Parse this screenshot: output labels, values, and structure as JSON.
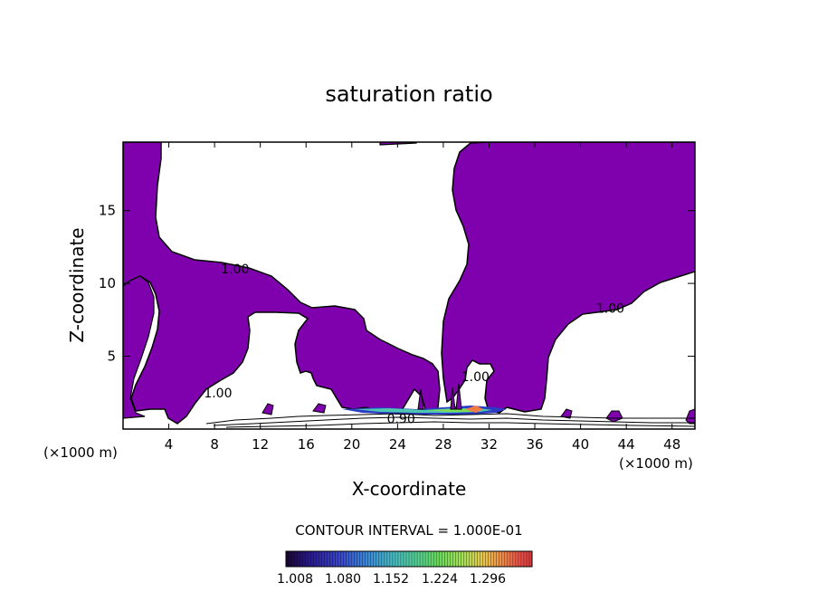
{
  "chart_data": {
    "type": "contour",
    "title": "saturation ratio",
    "xlabel": "X-coordinate",
    "ylabel": "Z-coordinate",
    "x_unit_left": "(×1000 m)",
    "x_unit_right": "(×1000 m)",
    "xlim": [
      0,
      50
    ],
    "ylim": [
      0,
      19.7
    ],
    "x_ticks": [
      4,
      8,
      12,
      16,
      20,
      24,
      28,
      32,
      36,
      40,
      44,
      48
    ],
    "y_ticks": [
      5,
      10,
      15
    ],
    "contour_interval_text": "CONTOUR INTERVAL = 1.000E-01",
    "contour_labels": [
      {
        "text": "1.00",
        "x": 9.8,
        "z": 11.0
      },
      {
        "text": "1.00",
        "x": 8.3,
        "z": 2.5
      },
      {
        "text": "1.00",
        "x": 42.6,
        "z": 8.3
      },
      {
        "text": "1.00",
        "x": 30.8,
        "z": 3.6
      },
      {
        "text": "0.90",
        "x": 24.3,
        "z": 0.7
      }
    ],
    "colorbar": {
      "min": 1.008,
      "max": 1.332,
      "tick_labels": [
        "1.008",
        "1.080",
        "1.152",
        "1.224",
        "1.296"
      ],
      "colors": [
        "#1a0630",
        "#2a1a90",
        "#3a46c8",
        "#3a8ad8",
        "#48bcc0",
        "#56d28a",
        "#6ada5a",
        "#a8e058",
        "#e6c850",
        "#f08a48",
        "#e85048",
        "#d83a3a"
      ]
    },
    "fill_color": "#7f00ad",
    "fill_level": "≥ 1.00"
  }
}
